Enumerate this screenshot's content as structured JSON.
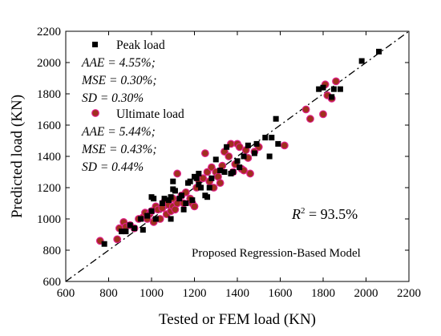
{
  "chart_data": {
    "type": "scatter",
    "xlabel": "Tested or FEM load (KN)",
    "ylabel": "Predicted load (KN)",
    "xlim": [
      600,
      2200
    ],
    "ylim": [
      600,
      2200
    ],
    "x_ticks": [
      "600",
      "800",
      "1000",
      "1200",
      "1400",
      "1600",
      "1800",
      "2000",
      "2200"
    ],
    "y_ticks": [
      "600",
      "800",
      "1000",
      "1200",
      "1400",
      "1600",
      "1800",
      "2000",
      "2200"
    ],
    "reference_line": "y = x (dash-dot)",
    "series": [
      {
        "name": "Peak load",
        "marker": "square",
        "color": "#000000",
        "stats": {
          "aae": "AAE = 4.55%;",
          "mse": "MSE = 0.30%;",
          "sd": "SD = 0.30%"
        },
        "points": [
          [
            780,
            840
          ],
          [
            860,
            920
          ],
          [
            880,
            920
          ],
          [
            900,
            960
          ],
          [
            920,
            940
          ],
          [
            950,
            1000
          ],
          [
            960,
            930
          ],
          [
            980,
            1020
          ],
          [
            1000,
            1050
          ],
          [
            1000,
            1140
          ],
          [
            1010,
            1130
          ],
          [
            1020,
            1000
          ],
          [
            1050,
            1100
          ],
          [
            1060,
            1130
          ],
          [
            1080,
            1120
          ],
          [
            1090,
            1000
          ],
          [
            1090,
            1140
          ],
          [
            1100,
            1190
          ],
          [
            1100,
            1240
          ],
          [
            1110,
            1180
          ],
          [
            1130,
            1130
          ],
          [
            1140,
            1150
          ],
          [
            1150,
            1060
          ],
          [
            1160,
            1100
          ],
          [
            1170,
            1230
          ],
          [
            1180,
            1240
          ],
          [
            1190,
            1120
          ],
          [
            1200,
            1270
          ],
          [
            1210,
            1260
          ],
          [
            1220,
            1220
          ],
          [
            1220,
            1290
          ],
          [
            1230,
            1200
          ],
          [
            1250,
            1150
          ],
          [
            1260,
            1140
          ],
          [
            1270,
            1200
          ],
          [
            1280,
            1260
          ],
          [
            1300,
            1380
          ],
          [
            1320,
            1310
          ],
          [
            1340,
            1300
          ],
          [
            1350,
            1460
          ],
          [
            1370,
            1290
          ],
          [
            1380,
            1300
          ],
          [
            1400,
            1370
          ],
          [
            1410,
            1330
          ],
          [
            1430,
            1400
          ],
          [
            1450,
            1470
          ],
          [
            1480,
            1420
          ],
          [
            1490,
            1480
          ],
          [
            1530,
            1520
          ],
          [
            1550,
            1400
          ],
          [
            1560,
            1520
          ],
          [
            1580,
            1640
          ],
          [
            1590,
            1480
          ],
          [
            1780,
            1830
          ],
          [
            1800,
            1840
          ],
          [
            1840,
            1780
          ],
          [
            1850,
            1830
          ],
          [
            1880,
            1830
          ],
          [
            1980,
            2010
          ],
          [
            2060,
            2070
          ]
        ]
      },
      {
        "name": "Ultimate load",
        "marker": "circle",
        "color": "#a0301e",
        "stats": {
          "aae": "AAE = 5.44%;",
          "mse": "MSE = 0.43%;",
          "sd": "SD = 0.44%"
        },
        "points": [
          [
            760,
            860
          ],
          [
            840,
            870
          ],
          [
            850,
            940
          ],
          [
            870,
            980
          ],
          [
            880,
            950
          ],
          [
            900,
            960
          ],
          [
            920,
            940
          ],
          [
            940,
            1000
          ],
          [
            960,
            1010
          ],
          [
            970,
            1040
          ],
          [
            980,
            1000
          ],
          [
            990,
            1030
          ],
          [
            1000,
            1050
          ],
          [
            1010,
            980
          ],
          [
            1020,
            1080
          ],
          [
            1030,
            1060
          ],
          [
            1040,
            1000
          ],
          [
            1050,
            1070
          ],
          [
            1060,
            1110
          ],
          [
            1070,
            1030
          ],
          [
            1080,
            1090
          ],
          [
            1090,
            1050
          ],
          [
            1100,
            1080
          ],
          [
            1100,
            1130
          ],
          [
            1110,
            1060
          ],
          [
            1120,
            1100
          ],
          [
            1120,
            1290
          ],
          [
            1140,
            1150
          ],
          [
            1150,
            1100
          ],
          [
            1160,
            1170
          ],
          [
            1180,
            1130
          ],
          [
            1190,
            1100
          ],
          [
            1200,
            1080
          ],
          [
            1210,
            1200
          ],
          [
            1220,
            1250
          ],
          [
            1240,
            1260
          ],
          [
            1250,
            1420
          ],
          [
            1260,
            1300
          ],
          [
            1270,
            1240
          ],
          [
            1280,
            1330
          ],
          [
            1290,
            1200
          ],
          [
            1300,
            1300
          ],
          [
            1310,
            1270
          ],
          [
            1320,
            1230
          ],
          [
            1330,
            1340
          ],
          [
            1340,
            1430
          ],
          [
            1360,
            1400
          ],
          [
            1370,
            1480
          ],
          [
            1380,
            1300
          ],
          [
            1390,
            1350
          ],
          [
            1400,
            1480
          ],
          [
            1410,
            1460
          ],
          [
            1420,
            1320
          ],
          [
            1430,
            1310
          ],
          [
            1440,
            1440
          ],
          [
            1450,
            1390
          ],
          [
            1460,
            1290
          ],
          [
            1480,
            1430
          ],
          [
            1500,
            1460
          ],
          [
            1620,
            1470
          ],
          [
            1720,
            1700
          ],
          [
            1740,
            1640
          ],
          [
            1800,
            1670
          ],
          [
            1810,
            1860
          ],
          [
            1820,
            1790
          ],
          [
            1840,
            1770
          ],
          [
            1860,
            1880
          ]
        ]
      }
    ],
    "annotations": {
      "r2_label": "R",
      "r2_sup": "2",
      "r2_value": " = 93.5%",
      "model_label": "Proposed Regression-Based Model"
    }
  }
}
